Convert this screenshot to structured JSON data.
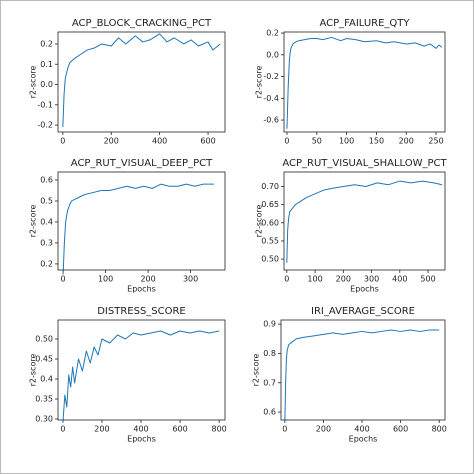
{
  "chart_data": [
    {
      "type": "line",
      "title": "ACP_BLOCK_CRACKING_PCT",
      "ylabel": "r2-score",
      "x": [
        0,
        5,
        10,
        20,
        30,
        50,
        75,
        100,
        130,
        160,
        200,
        230,
        260,
        300,
        330,
        360,
        400,
        430,
        460,
        500,
        530,
        560,
        600,
        620,
        650
      ],
      "series": [
        {
          "color": "#1f77b4",
          "values": [
            -0.21,
            -0.05,
            0.03,
            0.08,
            0.11,
            0.13,
            0.15,
            0.17,
            0.18,
            0.2,
            0.19,
            0.23,
            0.2,
            0.24,
            0.21,
            0.22,
            0.25,
            0.21,
            0.23,
            0.2,
            0.22,
            0.19,
            0.21,
            0.17,
            0.2
          ]
        }
      ],
      "xlim": [
        -20,
        670
      ],
      "ylim": [
        -0.234,
        0.259
      ],
      "xticks": [
        0,
        200,
        400,
        600
      ],
      "yticks": [
        0.2,
        0.1,
        {
          "value": 0,
          "label": "0.0"
        },
        -0.1,
        -0.2
      ]
    },
    {
      "type": "line",
      "title": "ACP_FAILURE_QTY",
      "ylabel": "r2-score",
      "x": [
        0,
        2,
        4,
        6,
        10,
        15,
        20,
        30,
        40,
        50,
        60,
        75,
        90,
        100,
        115,
        130,
        150,
        165,
        180,
        200,
        215,
        230,
        240,
        250,
        255,
        260
      ],
      "series": [
        {
          "color": "#1f77b4",
          "values": [
            -0.68,
            -0.3,
            -0.05,
            0.05,
            0.1,
            0.12,
            0.13,
            0.14,
            0.15,
            0.15,
            0.14,
            0.16,
            0.13,
            0.15,
            0.14,
            0.12,
            0.13,
            0.11,
            0.12,
            0.1,
            0.11,
            0.08,
            0.1,
            0.06,
            0.09,
            0.07
          ]
        }
      ],
      "xlim": [
        -5,
        265
      ],
      "ylim": [
        -0.71,
        0.21
      ],
      "xticks": [
        0,
        50,
        100,
        150,
        200,
        250
      ],
      "yticks": [
        0.2,
        {
          "value": 0,
          "label": "0.0"
        },
        -0.2,
        -0.4,
        -0.6
      ]
    },
    {
      "type": "line",
      "title": "ACP_RUT_VISUAL_DEEP_PCT",
      "xlabel": "Epochs",
      "ylabel": "r2-score",
      "x": [
        0,
        3,
        6,
        10,
        15,
        20,
        30,
        40,
        50,
        70,
        90,
        110,
        130,
        150,
        170,
        190,
        210,
        230,
        250,
        270,
        290,
        310,
        330,
        355
      ],
      "series": [
        {
          "color": "#1f77b4",
          "values": [
            0.15,
            0.3,
            0.4,
            0.45,
            0.48,
            0.5,
            0.51,
            0.52,
            0.53,
            0.54,
            0.55,
            0.55,
            0.56,
            0.57,
            0.56,
            0.57,
            0.56,
            0.58,
            0.57,
            0.57,
            0.58,
            0.57,
            0.58,
            0.58
          ]
        }
      ],
      "xlim": [
        -12,
        381
      ],
      "ylim": [
        0.171,
        0.638
      ],
      "xticks": [
        0,
        100,
        200,
        300
      ],
      "yticks": [
        0.6,
        0.5,
        0.4,
        0.3,
        0.2
      ]
    },
    {
      "type": "line",
      "title": "ACP_RUT_VISUAL_SHALLOW_PCT",
      "xlabel": "Epochs",
      "ylabel": "r2-score",
      "x": [
        0,
        3,
        6,
        10,
        20,
        30,
        50,
        70,
        100,
        130,
        160,
        200,
        240,
        280,
        320,
        360,
        400,
        440,
        480,
        520,
        550
      ],
      "series": [
        {
          "color": "#1f77b4",
          "values": [
            0.49,
            0.58,
            0.61,
            0.63,
            0.64,
            0.65,
            0.66,
            0.67,
            0.68,
            0.69,
            0.695,
            0.7,
            0.705,
            0.7,
            0.71,
            0.705,
            0.715,
            0.71,
            0.715,
            0.71,
            0.705
          ]
        }
      ],
      "xlim": [
        -10,
        560
      ],
      "ylim": [
        0.47,
        0.74
      ],
      "xticks": [
        0,
        100,
        200,
        300,
        400,
        500
      ],
      "yticks": [
        {
          "value": 0.7,
          "label": "0.70"
        },
        0.65,
        {
          "value": 0.6,
          "label": "0.60"
        },
        0.55,
        {
          "value": 0.5,
          "label": "0.50"
        }
      ]
    },
    {
      "type": "line",
      "title": "DISTRESS_SCORE",
      "xlabel": "Epochs",
      "ylabel": "r2-score",
      "x": [
        0,
        10,
        20,
        30,
        40,
        50,
        60,
        80,
        100,
        120,
        140,
        160,
        180,
        200,
        240,
        280,
        320,
        360,
        400,
        450,
        500,
        550,
        600,
        650,
        700,
        750,
        800
      ],
      "series": [
        {
          "color": "#1f77b4",
          "values": [
            0.29,
            0.36,
            0.33,
            0.41,
            0.38,
            0.43,
            0.39,
            0.45,
            0.42,
            0.47,
            0.44,
            0.48,
            0.46,
            0.5,
            0.49,
            0.51,
            0.5,
            0.515,
            0.51,
            0.515,
            0.52,
            0.51,
            0.52,
            0.515,
            0.52,
            0.515,
            0.52
          ]
        }
      ],
      "xlim": [
        -25,
        830
      ],
      "ylim": [
        0.2975,
        0.5475
      ],
      "xticks": [
        0,
        200,
        400,
        600,
        800
      ],
      "yticks": [
        {
          "value": 0.5,
          "label": "0.50"
        },
        0.45,
        0.4,
        0.35,
        {
          "value": 0.3,
          "label": "0.30"
        }
      ]
    },
    {
      "type": "line",
      "title": "IRI_AVERAGE_SCORE",
      "xlabel": "Epochs",
      "ylabel": "r2-score",
      "x": [
        0,
        4,
        8,
        12,
        20,
        40,
        60,
        100,
        150,
        200,
        250,
        300,
        350,
        400,
        450,
        500,
        550,
        600,
        650,
        700,
        750,
        800
      ],
      "series": [
        {
          "color": "#1f77b4",
          "values": [
            0.57,
            0.7,
            0.78,
            0.81,
            0.83,
            0.84,
            0.85,
            0.855,
            0.86,
            0.865,
            0.87,
            0.865,
            0.87,
            0.875,
            0.87,
            0.875,
            0.88,
            0.875,
            0.88,
            0.875,
            0.88,
            0.88
          ]
        }
      ],
      "xlim": [
        -20,
        830
      ],
      "ylim": [
        0.573,
        0.914
      ],
      "xticks": [
        0,
        200,
        400,
        600,
        800
      ],
      "yticks": [
        0.9,
        0.8,
        0.7,
        0.6
      ]
    }
  ]
}
